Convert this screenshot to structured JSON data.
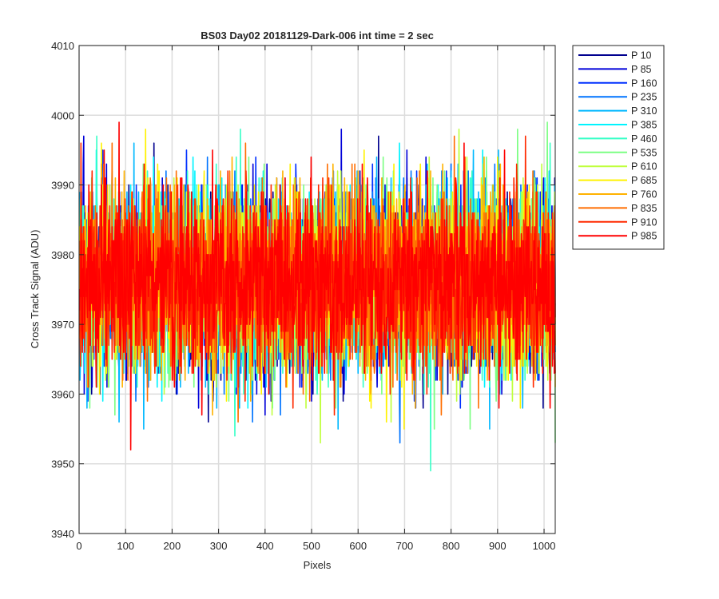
{
  "chart_data": {
    "type": "line",
    "title": "BS03 Day02 20181129-Dark-006 int time = 2 sec",
    "xlabel": "Pixels",
    "ylabel": "Cross Track Signal (ADU)",
    "xlim": [
      0,
      1024
    ],
    "ylim": [
      3940,
      4010
    ],
    "x_ticks": [
      0,
      100,
      200,
      300,
      400,
      500,
      600,
      700,
      800,
      900,
      1000
    ],
    "y_ticks": [
      3940,
      3950,
      3960,
      3970,
      3980,
      3990,
      4000,
      4010
    ],
    "grid": true,
    "legend_position": "outside-top-right",
    "x": {
      "start": 1,
      "end": 1024,
      "step": 1
    },
    "noise_model": {
      "mean": 3976,
      "std": 6.5,
      "note_min": 3945,
      "note_max": 4010
    },
    "series": [
      {
        "name": "P 10",
        "color": "#00008F"
      },
      {
        "name": "P 85",
        "color": "#0000D9"
      },
      {
        "name": "P 160",
        "color": "#0030FF"
      },
      {
        "name": "P 235",
        "color": "#0074FF"
      },
      {
        "name": "P 310",
        "color": "#00B8FF"
      },
      {
        "name": "P 385",
        "color": "#00F4FF"
      },
      {
        "name": "P 460",
        "color": "#38FFC7"
      },
      {
        "name": "P 535",
        "color": "#7CFF83"
      },
      {
        "name": "P 610",
        "color": "#C0FF3F"
      },
      {
        "name": "P 685",
        "color": "#FFF200"
      },
      {
        "name": "P 760",
        "color": "#FFB200"
      },
      {
        "name": "P 835",
        "color": "#FF6E00"
      },
      {
        "name": "P 910",
        "color": "#FF2A00"
      },
      {
        "name": "P 985",
        "color": "#FF0000"
      }
    ]
  }
}
